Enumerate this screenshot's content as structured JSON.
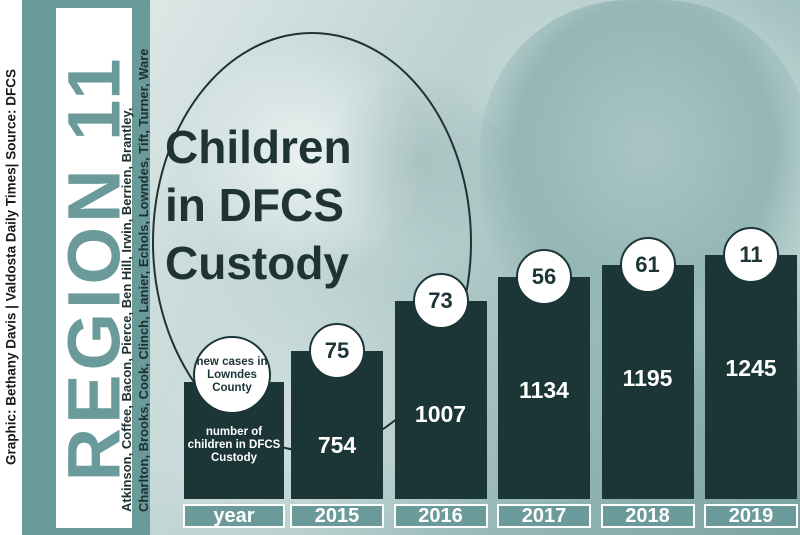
{
  "credit": "Graphic: Bethany Davis | Valdosta Daily Times| Source: DFCS",
  "region": "REGION 11",
  "counties_line1": "Atkinson, Coffee, Bacon, Pierce, Ben Hill, Irwin, Berrien, Brantley,",
  "counties_line2": "Charlton, Brooks, Cook, Clinch, Lanier, Echols, Lowndes, Tift, Turner, Ware",
  "title_line1": "Children",
  "title_line2": "in DFCS",
  "title_line3": "Custody",
  "legend": {
    "circle_text": "new cases in Lowndes County",
    "bar_text": "number of children in DFCS Custody",
    "year_label": "year"
  },
  "colors": {
    "bar": "#1c3537",
    "accent": "#6b9a9a",
    "text_dark": "#1f3335"
  },
  "chart_data": {
    "type": "bar",
    "title": "Children in DFCS Custody",
    "categories": [
      "2015",
      "2016",
      "2017",
      "2018",
      "2019"
    ],
    "series": [
      {
        "name": "number of children in DFCS Custody",
        "values": [
          754,
          1007,
          1134,
          1195,
          1245
        ]
      },
      {
        "name": "new cases in Lowndes County",
        "values": [
          75,
          73,
          56,
          61,
          11
        ]
      }
    ],
    "xlabel": "year",
    "ylabel": "",
    "grid": false
  }
}
